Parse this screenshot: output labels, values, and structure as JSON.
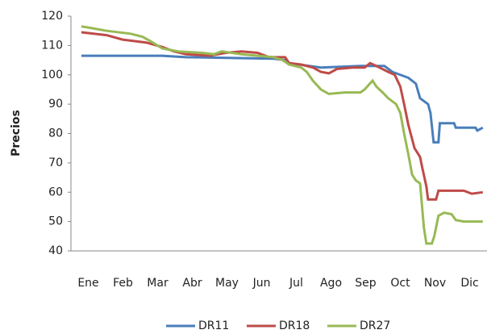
{
  "chart_data": {
    "type": "line",
    "y_label": "Precios",
    "xlim": [
      0,
      12
    ],
    "xticks": [
      {
        "value": 0.5,
        "label": "Ene"
      },
      {
        "value": 1.5,
        "label": "Feb"
      },
      {
        "value": 2.5,
        "label": "Mar"
      },
      {
        "value": 3.5,
        "label": "Abr"
      },
      {
        "value": 4.5,
        "label": "May"
      },
      {
        "value": 5.5,
        "label": "Jun"
      },
      {
        "value": 6.5,
        "label": "Jul"
      },
      {
        "value": 7.5,
        "label": "Ago"
      },
      {
        "value": 8.5,
        "label": "Sep"
      },
      {
        "value": 9.5,
        "label": "Oct"
      },
      {
        "value": 10.5,
        "label": "Nov"
      },
      {
        "value": 11.5,
        "label": "Dic"
      }
    ],
    "ylim": [
      40,
      120
    ],
    "yticks": [
      40,
      50,
      60,
      70,
      80,
      90,
      100,
      110,
      120
    ],
    "grid": false,
    "legend": "bottom",
    "series": [
      {
        "name": "DR11",
        "color": "#4a7ebb",
        "x": [
          0.3,
          2.63,
          3.32,
          5.84,
          6.18,
          6.29,
          7.21,
          8.35,
          9.04,
          9.27,
          9.73,
          9.95,
          10.07,
          10.3,
          10.37,
          10.46,
          10.6,
          10.64,
          11.05,
          11.1,
          11.67,
          11.72,
          11.88
        ],
        "values": [
          106.5,
          106.5,
          106,
          105.5,
          105,
          104,
          102.5,
          103,
          103,
          101,
          99,
          97,
          92,
          90,
          87,
          77,
          77,
          83.5,
          83.5,
          82,
          82,
          81,
          82
        ]
      },
      {
        "name": "DR18",
        "color": "#be4b48",
        "x": [
          0.3,
          1.03,
          1.49,
          2.17,
          2.63,
          2.97,
          3.32,
          4.0,
          4.46,
          4.92,
          5.38,
          5.72,
          6.18,
          6.29,
          6.64,
          6.98,
          7.21,
          7.44,
          7.67,
          8.12,
          8.47,
          8.63,
          8.81,
          9.15,
          9.34,
          9.5,
          9.61,
          9.73,
          9.91,
          10.07,
          10.14,
          10.25,
          10.3,
          10.53,
          10.6,
          11.33,
          11.56,
          11.88
        ],
        "values": [
          114.5,
          113.5,
          112,
          111,
          109.5,
          108,
          107,
          106.5,
          107.5,
          108,
          107.5,
          106,
          106,
          104,
          103.5,
          102.5,
          101,
          100.5,
          102,
          102.5,
          102.5,
          104,
          103,
          101,
          100,
          96,
          90,
          83,
          75,
          72,
          68,
          62,
          57.5,
          57.5,
          60.5,
          60.5,
          59.5,
          60
        ]
      },
      {
        "name": "DR27",
        "color": "#98b954",
        "x": [
          0.3,
          0.57,
          1.03,
          1.72,
          2.06,
          2.29,
          2.63,
          3.09,
          3.78,
          4.12,
          4.35,
          4.92,
          5.38,
          5.84,
          6.11,
          6.29,
          6.64,
          6.8,
          6.98,
          7.21,
          7.44,
          7.89,
          8.35,
          8.47,
          8.7,
          8.81,
          8.99,
          9.15,
          9.38,
          9.5,
          9.61,
          9.73,
          9.84,
          9.95,
          10.07,
          10.18,
          10.25,
          10.41,
          10.48,
          10.6,
          10.76,
          10.98,
          11.1,
          11.33,
          11.88
        ],
        "values": [
          116.5,
          116,
          115,
          114,
          113,
          111.5,
          109,
          108,
          107.5,
          107,
          108,
          107,
          106.5,
          106,
          105,
          103.5,
          102.5,
          101,
          98,
          95,
          93.5,
          94,
          94,
          95,
          98,
          96,
          94,
          92,
          90,
          87,
          80,
          73,
          66,
          64,
          63,
          48,
          42.5,
          42.5,
          45,
          52,
          53,
          52.5,
          50.5,
          50,
          50
        ]
      }
    ]
  }
}
